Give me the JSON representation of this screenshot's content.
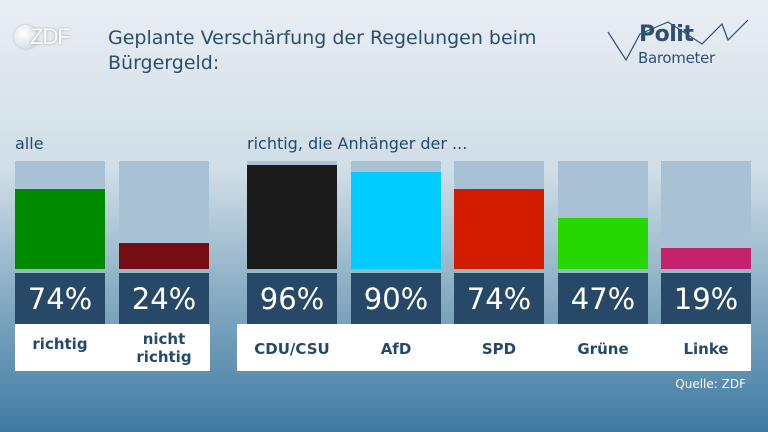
{
  "broadcaster": "ZDF",
  "brand_line1": "Polit",
  "brand_line2": "Barometer",
  "title": "Geplante Verschärfung der Regelungen beim Bürgergeld:",
  "chart_data": {
    "type": "bar",
    "title": "Geplante Verschärfung der Regelungen beim Bürgergeld:",
    "ylim": [
      0,
      100
    ],
    "groups": [
      {
        "label": "alle",
        "bars": [
          {
            "category": "richtig",
            "value": 74,
            "value_label": "74%",
            "color": "#008a00"
          },
          {
            "category": "nicht richtig",
            "value": 24,
            "value_label": "24%",
            "color": "#750e12"
          }
        ]
      },
      {
        "label": "richtig, die Anhänger der ...",
        "bars": [
          {
            "category": "CDU/CSU",
            "value": 96,
            "value_label": "96%",
            "color": "#1a1a1a"
          },
          {
            "category": "AfD",
            "value": 90,
            "value_label": "90%",
            "color": "#00ccff"
          },
          {
            "category": "SPD",
            "value": 74,
            "value_label": "74%",
            "color": "#d21d00"
          },
          {
            "category": "Grüne",
            "value": 47,
            "value_label": "47%",
            "color": "#26d800"
          },
          {
            "category": "Linke",
            "value": 19,
            "value_label": "19%",
            "color": "#c3206e"
          }
        ]
      }
    ],
    "track_color": "#a9c1d4",
    "value_box_color": "#274867"
  },
  "source": "Quelle: ZDF"
}
